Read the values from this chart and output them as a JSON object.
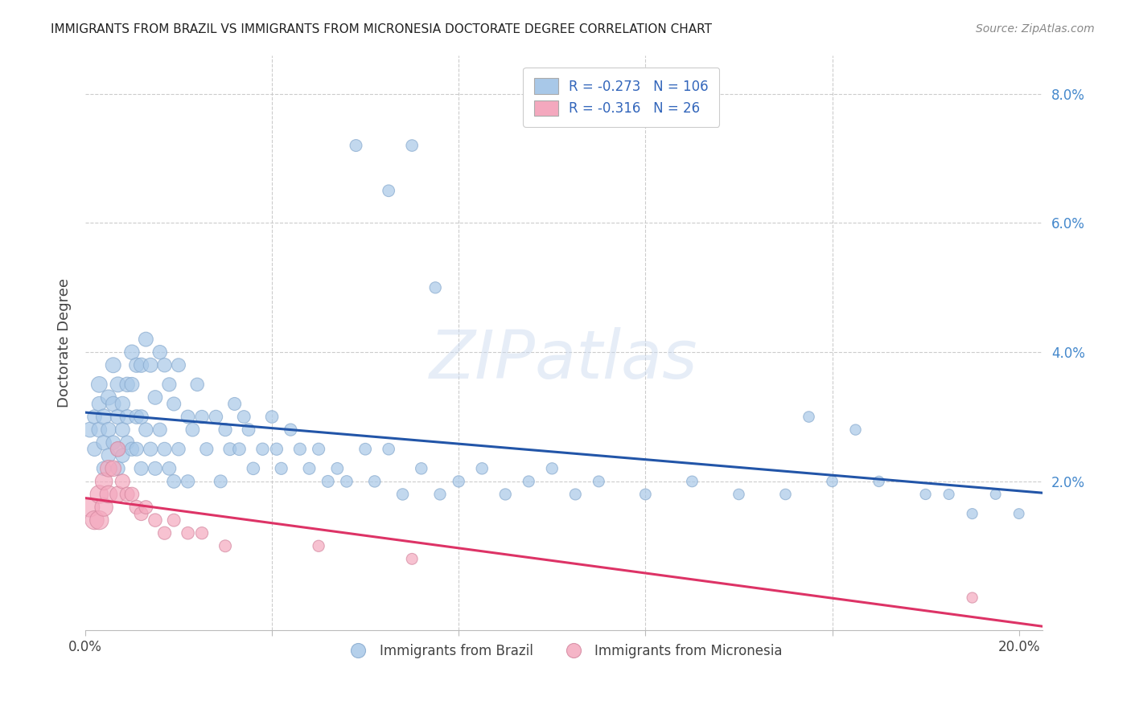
{
  "title": "IMMIGRANTS FROM BRAZIL VS IMMIGRANTS FROM MICRONESIA DOCTORATE DEGREE CORRELATION CHART",
  "source": "Source: ZipAtlas.com",
  "ylabel": "Doctorate Degree",
  "xlim": [
    0.0,
    0.205
  ],
  "ylim": [
    -0.003,
    0.086
  ],
  "xticks": [
    0.0,
    0.04,
    0.08,
    0.12,
    0.16,
    0.2
  ],
  "xticklabels": [
    "0.0%",
    "",
    "",
    "",
    "",
    "20.0%"
  ],
  "yticks_right": [
    0.02,
    0.04,
    0.06,
    0.08
  ],
  "yticklabels_right": [
    "2.0%",
    "4.0%",
    "6.0%",
    "8.0%"
  ],
  "brazil_R": -0.273,
  "brazil_N": 106,
  "micronesia_R": -0.316,
  "micronesia_N": 26,
  "brazil_color": "#A8C8E8",
  "brazil_edge_color": "#88AACE",
  "micronesia_color": "#F4A8BE",
  "micronesia_edge_color": "#D488A0",
  "brazil_line_color": "#2255A8",
  "micronesia_line_color": "#DD3366",
  "legend_brazil_label": "Immigrants from Brazil",
  "legend_micronesia_label": "Immigrants from Micronesia",
  "watermark": "ZIPatlas",
  "grid_color": "#CCCCCC",
  "title_fontsize": 11,
  "axis_label_fontsize": 12,
  "brazil_x": [
    0.001,
    0.002,
    0.002,
    0.003,
    0.003,
    0.003,
    0.004,
    0.004,
    0.004,
    0.005,
    0.005,
    0.005,
    0.006,
    0.006,
    0.006,
    0.007,
    0.007,
    0.007,
    0.007,
    0.008,
    0.008,
    0.008,
    0.009,
    0.009,
    0.009,
    0.01,
    0.01,
    0.01,
    0.011,
    0.011,
    0.011,
    0.012,
    0.012,
    0.012,
    0.013,
    0.013,
    0.014,
    0.014,
    0.015,
    0.015,
    0.016,
    0.016,
    0.017,
    0.017,
    0.018,
    0.018,
    0.019,
    0.019,
    0.02,
    0.02,
    0.022,
    0.022,
    0.023,
    0.024,
    0.025,
    0.026,
    0.028,
    0.029,
    0.03,
    0.031,
    0.032,
    0.033,
    0.034,
    0.035,
    0.036,
    0.038,
    0.04,
    0.041,
    0.042,
    0.044,
    0.046,
    0.048,
    0.05,
    0.052,
    0.054,
    0.056,
    0.06,
    0.062,
    0.065,
    0.068,
    0.072,
    0.076,
    0.08,
    0.085,
    0.09,
    0.095,
    0.1,
    0.105,
    0.11,
    0.12,
    0.13,
    0.14,
    0.15,
    0.16,
    0.17,
    0.18,
    0.185,
    0.19,
    0.195,
    0.2,
    0.058,
    0.065,
    0.07,
    0.075,
    0.155,
    0.165
  ],
  "brazil_y": [
    0.028,
    0.03,
    0.025,
    0.035,
    0.028,
    0.032,
    0.03,
    0.026,
    0.022,
    0.033,
    0.028,
    0.024,
    0.038,
    0.032,
    0.026,
    0.035,
    0.03,
    0.025,
    0.022,
    0.032,
    0.028,
    0.024,
    0.035,
    0.03,
    0.026,
    0.04,
    0.035,
    0.025,
    0.038,
    0.03,
    0.025,
    0.038,
    0.03,
    0.022,
    0.042,
    0.028,
    0.038,
    0.025,
    0.033,
    0.022,
    0.04,
    0.028,
    0.038,
    0.025,
    0.035,
    0.022,
    0.032,
    0.02,
    0.038,
    0.025,
    0.03,
    0.02,
    0.028,
    0.035,
    0.03,
    0.025,
    0.03,
    0.02,
    0.028,
    0.025,
    0.032,
    0.025,
    0.03,
    0.028,
    0.022,
    0.025,
    0.03,
    0.025,
    0.022,
    0.028,
    0.025,
    0.022,
    0.025,
    0.02,
    0.022,
    0.02,
    0.025,
    0.02,
    0.025,
    0.018,
    0.022,
    0.018,
    0.02,
    0.022,
    0.018,
    0.02,
    0.022,
    0.018,
    0.02,
    0.018,
    0.02,
    0.018,
    0.018,
    0.02,
    0.02,
    0.018,
    0.018,
    0.015,
    0.018,
    0.015,
    0.072,
    0.065,
    0.072,
    0.05,
    0.03,
    0.028
  ],
  "brazil_sizes": [
    180,
    160,
    160,
    200,
    180,
    170,
    190,
    175,
    160,
    185,
    175,
    160,
    185,
    175,
    160,
    185,
    175,
    160,
    155,
    175,
    165,
    155,
    175,
    165,
    155,
    175,
    165,
    155,
    170,
    160,
    150,
    170,
    160,
    150,
    165,
    155,
    165,
    155,
    160,
    150,
    155,
    148,
    155,
    148,
    152,
    145,
    150,
    145,
    148,
    140,
    145,
    138,
    145,
    140,
    138,
    135,
    140,
    132,
    135,
    130,
    132,
    128,
    130,
    128,
    125,
    122,
    125,
    120,
    118,
    120,
    118,
    115,
    118,
    115,
    112,
    110,
    112,
    108,
    110,
    108,
    108,
    105,
    105,
    108,
    105,
    102,
    105,
    102,
    100,
    98,
    98,
    95,
    95,
    95,
    92,
    90,
    88,
    88,
    85,
    85,
    115,
    112,
    110,
    105,
    95,
    92
  ],
  "micronesia_x": [
    0.001,
    0.002,
    0.003,
    0.003,
    0.004,
    0.004,
    0.005,
    0.005,
    0.006,
    0.007,
    0.007,
    0.008,
    0.009,
    0.01,
    0.011,
    0.012,
    0.013,
    0.015,
    0.017,
    0.019,
    0.022,
    0.025,
    0.03,
    0.05,
    0.07,
    0.19
  ],
  "micronesia_y": [
    0.016,
    0.014,
    0.018,
    0.014,
    0.02,
    0.016,
    0.022,
    0.018,
    0.022,
    0.025,
    0.018,
    0.02,
    0.018,
    0.018,
    0.016,
    0.015,
    0.016,
    0.014,
    0.012,
    0.014,
    0.012,
    0.012,
    0.01,
    0.01,
    0.008,
    0.002
  ],
  "micronesia_sizes": [
    300,
    280,
    260,
    280,
    240,
    260,
    220,
    240,
    200,
    180,
    200,
    170,
    165,
    160,
    155,
    150,
    145,
    140,
    135,
    130,
    125,
    120,
    115,
    105,
    100,
    90
  ]
}
